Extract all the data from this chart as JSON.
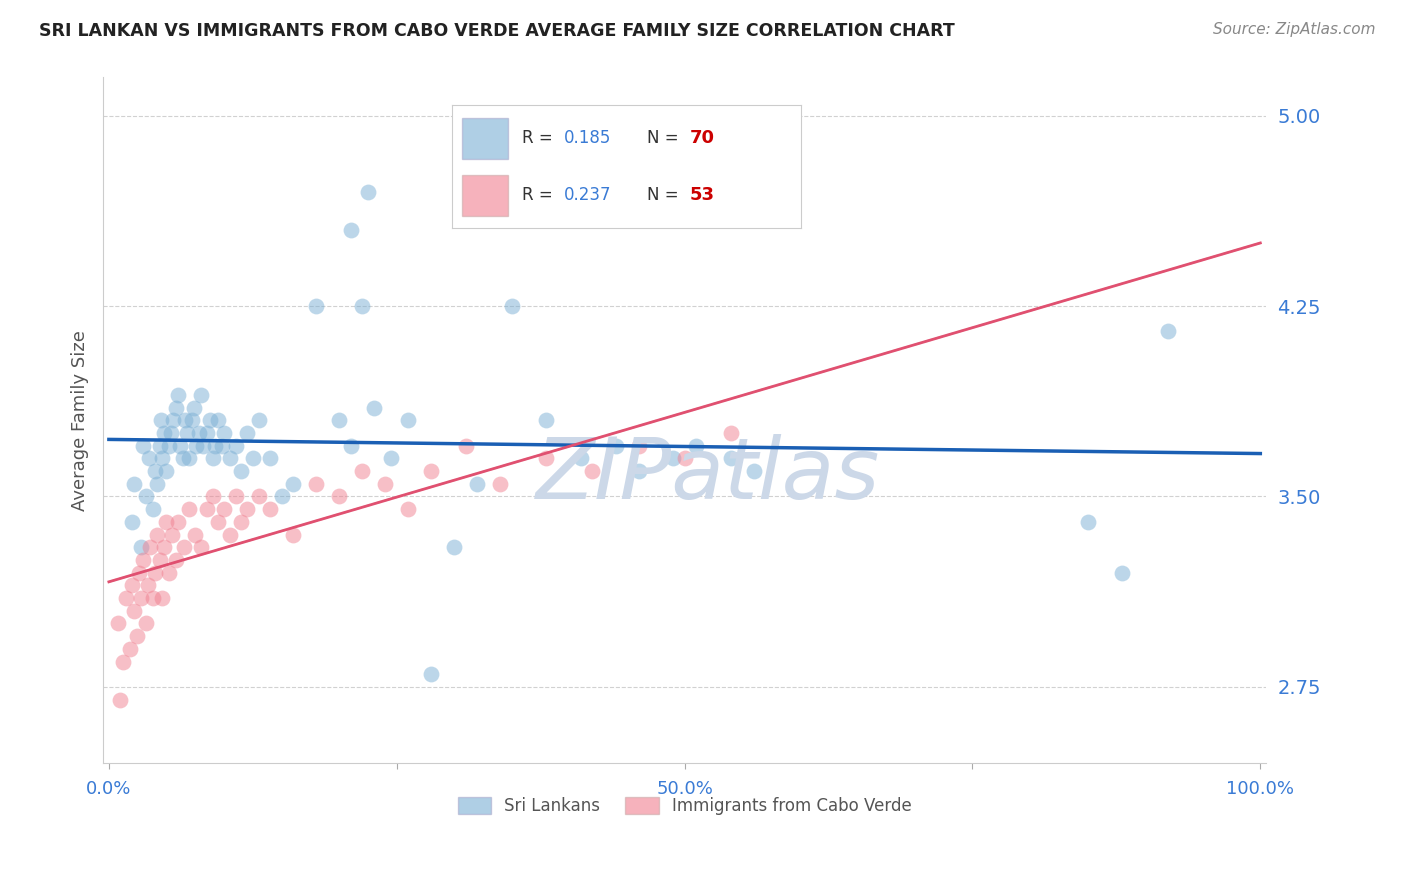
{
  "title": "SRI LANKAN VS IMMIGRANTS FROM CABO VERDE AVERAGE FAMILY SIZE CORRELATION CHART",
  "source": "Source: ZipAtlas.com",
  "ylabel": "Average Family Size",
  "sri_lankans_R": 0.185,
  "sri_lankans_N": 70,
  "cabo_verde_R": 0.237,
  "cabo_verde_N": 53,
  "blue_scatter_color": "#7bafd4",
  "pink_scatter_color": "#f08090",
  "blue_line_color": "#1a5fb4",
  "pink_line_color": "#e05070",
  "blue_dash_color": "#b0c8e0",
  "pink_dash_color": "#f0b8c0",
  "axis_color": "#3a7bd5",
  "grid_color": "#cccccc",
  "watermark_color": "#ccd8e8",
  "title_color": "#222222",
  "source_color": "#888888",
  "ymin": 2.45,
  "ymax": 5.15,
  "xmin": -0.005,
  "xmax": 1.005,
  "yticks": [
    2.75,
    3.5,
    4.25,
    5.0
  ],
  "ytick_labels": [
    "2.75",
    "3.50",
    "4.25",
    "5.00"
  ],
  "sri_lankans_x": [
    0.02,
    0.022,
    0.028,
    0.03,
    0.032,
    0.035,
    0.038,
    0.04,
    0.042,
    0.044,
    0.045,
    0.046,
    0.048,
    0.05,
    0.052,
    0.054,
    0.056,
    0.058,
    0.06,
    0.062,
    0.064,
    0.066,
    0.068,
    0.07,
    0.072,
    0.074,
    0.076,
    0.078,
    0.08,
    0.082,
    0.085,
    0.088,
    0.09,
    0.092,
    0.095,
    0.098,
    0.1,
    0.105,
    0.11,
    0.115,
    0.12,
    0.125,
    0.13,
    0.14,
    0.15,
    0.16,
    0.18,
    0.2,
    0.21,
    0.22,
    0.23,
    0.245,
    0.26,
    0.28,
    0.3,
    0.32,
    0.35,
    0.38,
    0.41,
    0.44,
    0.46,
    0.49,
    0.51,
    0.54,
    0.56,
    0.21,
    0.225,
    0.85,
    0.88,
    0.92
  ],
  "sri_lankans_y": [
    3.4,
    3.55,
    3.3,
    3.7,
    3.5,
    3.65,
    3.45,
    3.6,
    3.55,
    3.7,
    3.8,
    3.65,
    3.75,
    3.6,
    3.7,
    3.75,
    3.8,
    3.85,
    3.9,
    3.7,
    3.65,
    3.8,
    3.75,
    3.65,
    3.8,
    3.85,
    3.7,
    3.75,
    3.9,
    3.7,
    3.75,
    3.8,
    3.65,
    3.7,
    3.8,
    3.7,
    3.75,
    3.65,
    3.7,
    3.6,
    3.75,
    3.65,
    3.8,
    3.65,
    3.5,
    3.55,
    4.25,
    3.8,
    3.7,
    4.25,
    3.85,
    3.65,
    3.8,
    2.8,
    3.3,
    3.55,
    4.25,
    3.8,
    3.65,
    3.7,
    3.6,
    3.65,
    3.7,
    3.65,
    3.6,
    4.55,
    4.7,
    3.4,
    3.2,
    4.15
  ],
  "cabo_verde_x": [
    0.008,
    0.01,
    0.012,
    0.015,
    0.018,
    0.02,
    0.022,
    0.024,
    0.026,
    0.028,
    0.03,
    0.032,
    0.034,
    0.036,
    0.038,
    0.04,
    0.042,
    0.044,
    0.046,
    0.048,
    0.05,
    0.052,
    0.055,
    0.058,
    0.06,
    0.065,
    0.07,
    0.075,
    0.08,
    0.085,
    0.09,
    0.095,
    0.1,
    0.105,
    0.11,
    0.115,
    0.12,
    0.13,
    0.14,
    0.16,
    0.18,
    0.2,
    0.22,
    0.24,
    0.26,
    0.28,
    0.31,
    0.34,
    0.38,
    0.42,
    0.46,
    0.5,
    0.54
  ],
  "cabo_verde_y": [
    3.0,
    2.7,
    2.85,
    3.1,
    2.9,
    3.15,
    3.05,
    2.95,
    3.2,
    3.1,
    3.25,
    3.0,
    3.15,
    3.3,
    3.1,
    3.2,
    3.35,
    3.25,
    3.1,
    3.3,
    3.4,
    3.2,
    3.35,
    3.25,
    3.4,
    3.3,
    3.45,
    3.35,
    3.3,
    3.45,
    3.5,
    3.4,
    3.45,
    3.35,
    3.5,
    3.4,
    3.45,
    3.5,
    3.45,
    3.35,
    3.55,
    3.5,
    3.6,
    3.55,
    3.45,
    3.6,
    3.7,
    3.55,
    3.65,
    3.6,
    3.7,
    3.65,
    3.75
  ]
}
